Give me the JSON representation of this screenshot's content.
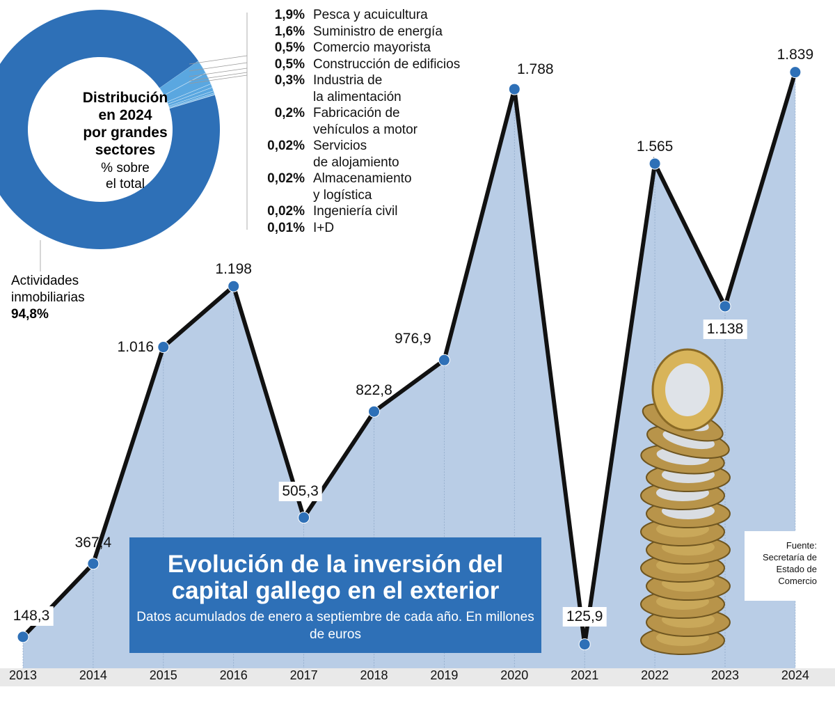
{
  "colors": {
    "area": "#b9cde6",
    "line": "#111111",
    "point": "#2e70b7",
    "donut_main": "#2e70b7",
    "donut_minor": "#5aa7e0",
    "title_bg": "#2e70b7"
  },
  "chart_data": [
    {
      "type": "line",
      "title": "Evolución de la inversión del capital gallego en el exterior",
      "subtitle": "Datos acumulados de enero a septiembre de cada año. En millones de euros",
      "categories": [
        "2013",
        "2014",
        "2015",
        "2016",
        "2017",
        "2018",
        "2019",
        "2020",
        "2021",
        "2022",
        "2023",
        "2024"
      ],
      "values": [
        148.3,
        367.4,
        1016,
        1198,
        505.3,
        822.8,
        976.9,
        1788,
        125.9,
        1565,
        1138,
        1839
      ],
      "value_labels": [
        "148,3",
        "367,4",
        "1.016",
        "1.198",
        "505,3",
        "822,8",
        "976,9",
        "1.788",
        "125,9",
        "1.565",
        "1.138",
        "1.839"
      ],
      "ylim": [
        0,
        2055
      ],
      "xlabel": "",
      "ylabel": "",
      "source": [
        "Fuente:",
        "Secretaría de",
        "Estado de",
        "Comercio"
      ]
    },
    {
      "type": "pie",
      "title": [
        "Distribución",
        "en 2024",
        "por grandes",
        "sectores"
      ],
      "subtitle": [
        "% sobre",
        "el total"
      ],
      "main": {
        "label": [
          "Actividades",
          "inmobiliarias"
        ],
        "value_label": "94,8%",
        "value": 94.8
      },
      "slices": [
        {
          "value_label": "1,9%",
          "value": 1.9,
          "label": [
            "Pesca y acuicultura"
          ]
        },
        {
          "value_label": "1,6%",
          "value": 1.6,
          "label": [
            "Suministro de energía"
          ]
        },
        {
          "value_label": "0,5%",
          "value": 0.5,
          "label": [
            "Comercio mayorista"
          ]
        },
        {
          "value_label": "0,5%",
          "value": 0.5,
          "label": [
            "Construcción de edificios"
          ]
        },
        {
          "value_label": "0,3%",
          "value": 0.3,
          "label": [
            "Industria de",
            "la alimentación"
          ]
        },
        {
          "value_label": "0,2%",
          "value": 0.2,
          "label": [
            "Fabricación de",
            "vehículos a motor"
          ]
        },
        {
          "value_label": "0,02%",
          "value": 0.02,
          "label": [
            "Servicios",
            "de alojamiento"
          ]
        },
        {
          "value_label": "0,02%",
          "value": 0.02,
          "label": [
            "Almacenamiento",
            "y logística"
          ]
        },
        {
          "value_label": "0,02%",
          "value": 0.02,
          "label": [
            "Ingeniería civil"
          ]
        },
        {
          "value_label": "0,01%",
          "value": 0.01,
          "label": [
            "I+D"
          ]
        }
      ]
    }
  ]
}
